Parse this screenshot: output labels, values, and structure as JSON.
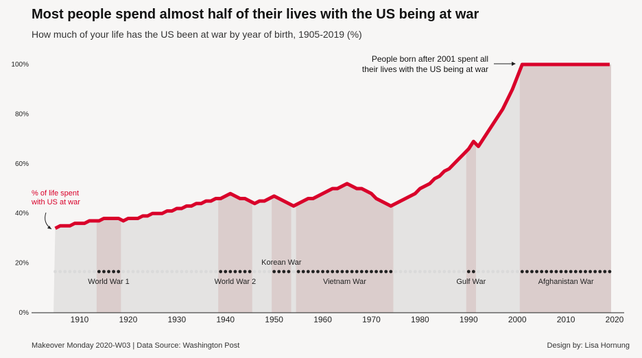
{
  "header": {
    "title": "Most people spend almost half of their lives with the US being at war",
    "subtitle": "How much of your life has the US been at war by year of birth, 1905-2019 (%)"
  },
  "footer": {
    "left": "Makeover Monday 2020-W03 | Data Source: Washington Post",
    "right": "Design by: Lisa Hornung"
  },
  "colors": {
    "line": "#d9002a",
    "war_band": "#dbcdcc",
    "area": "#e4e3e2",
    "dot_war": "#222222",
    "dot_peace": "#dadada"
  },
  "chart_data": {
    "type": "line",
    "xlim": [
      1903,
      2021
    ],
    "ylim": [
      0,
      100
    ],
    "x_ticks": [
      1910,
      1920,
      1930,
      1940,
      1950,
      1960,
      1970,
      1980,
      1990,
      2000,
      2010,
      2020
    ],
    "y_ticks": [
      0,
      20,
      40,
      60,
      80,
      100
    ],
    "y_tick_labels": [
      "0%",
      "20%",
      "40%",
      "60%",
      "80%",
      "100%"
    ],
    "grid": false,
    "series": [
      {
        "name": "% of life spent with US at war",
        "x": [
          1905,
          1906,
          1907,
          1908,
          1909,
          1910,
          1911,
          1912,
          1913,
          1914,
          1915,
          1916,
          1917,
          1918,
          1919,
          1920,
          1921,
          1922,
          1923,
          1924,
          1925,
          1926,
          1927,
          1928,
          1929,
          1930,
          1931,
          1932,
          1933,
          1934,
          1935,
          1936,
          1937,
          1938,
          1939,
          1940,
          1941,
          1942,
          1943,
          1944,
          1945,
          1946,
          1947,
          1948,
          1949,
          1950,
          1951,
          1952,
          1953,
          1954,
          1955,
          1956,
          1957,
          1958,
          1959,
          1960,
          1961,
          1962,
          1963,
          1964,
          1965,
          1966,
          1967,
          1968,
          1969,
          1970,
          1971,
          1972,
          1973,
          1974,
          1975,
          1976,
          1977,
          1978,
          1979,
          1980,
          1981,
          1982,
          1983,
          1984,
          1985,
          1986,
          1987,
          1988,
          1989,
          1990,
          1991,
          1992,
          1993,
          1994,
          1995,
          1996,
          1997,
          1998,
          1999,
          2000,
          2001,
          2002,
          2003,
          2004,
          2005,
          2006,
          2007,
          2008,
          2009,
          2010,
          2011,
          2012,
          2013,
          2014,
          2015,
          2016,
          2017,
          2018,
          2019
        ],
        "y": [
          34,
          35,
          35,
          35,
          36,
          36,
          36,
          37,
          37,
          37,
          38,
          38,
          38,
          38,
          37,
          38,
          38,
          38,
          39,
          39,
          40,
          40,
          40,
          41,
          41,
          42,
          42,
          43,
          43,
          44,
          44,
          45,
          45,
          46,
          46,
          47,
          48,
          47,
          46,
          46,
          45,
          44,
          45,
          45,
          46,
          47,
          46,
          45,
          44,
          43,
          44,
          45,
          46,
          46,
          47,
          48,
          49,
          50,
          50,
          51,
          52,
          51,
          50,
          50,
          49,
          48,
          46,
          45,
          44,
          43,
          44,
          45,
          46,
          47,
          48,
          50,
          51,
          52,
          54,
          55,
          57,
          58,
          60,
          62,
          64,
          66,
          69,
          67,
          70,
          73,
          76,
          79,
          82,
          86,
          90,
          95,
          100,
          100,
          100,
          100,
          100,
          100,
          100,
          100,
          100,
          100,
          100,
          100,
          100,
          100,
          100,
          100,
          100,
          100,
          100
        ]
      }
    ],
    "wars": [
      {
        "label": "World War 1",
        "start": 1914,
        "end": 1918
      },
      {
        "label": "World War 2",
        "start": 1939,
        "end": 1945
      },
      {
        "label": "Korean War",
        "start": 1950,
        "end": 1953
      },
      {
        "label": "Vietnam War",
        "start": 1955,
        "end": 1974
      },
      {
        "label": "Gulf War",
        "start": 1990,
        "end": 1991
      },
      {
        "label": "Afghanistan War",
        "start": 2001,
        "end": 2019
      }
    ],
    "annotations": {
      "series_label": [
        "% of life spent",
        "with US at war"
      ],
      "note": [
        "People born after 2001 spent all",
        "their lives with the US being at war"
      ]
    }
  }
}
